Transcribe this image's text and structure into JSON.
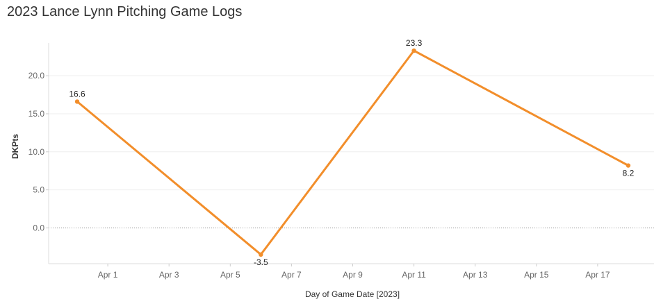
{
  "chart_data": {
    "type": "line",
    "title": "2023 Lance Lynn Pitching Game Logs",
    "xlabel": "Day of Game Date [2023]",
    "ylabel": "DKPts",
    "x_ticks": [
      "Apr 1",
      "Apr 3",
      "Apr 5",
      "Apr 7",
      "Apr 9",
      "Apr 11",
      "Apr 13",
      "Apr 15",
      "Apr 17"
    ],
    "y_ticks": [
      "0.0",
      "5.0",
      "10.0",
      "15.0",
      "20.0"
    ],
    "ylim": [
      -4.7,
      24.3
    ],
    "xlim": [
      "2023-03-30",
      "2023-04-19"
    ],
    "grid": true,
    "series": [
      {
        "color": "#f28e2b",
        "points": [
          {
            "date": "2023-03-31",
            "value": 16.6,
            "label": "16.6"
          },
          {
            "date": "2023-04-06",
            "value": -3.5,
            "label": "-3.5"
          },
          {
            "date": "2023-04-11",
            "value": 23.3,
            "label": "23.3"
          },
          {
            "date": "2023-04-18",
            "value": 8.2,
            "label": "8.2"
          }
        ]
      }
    ]
  }
}
